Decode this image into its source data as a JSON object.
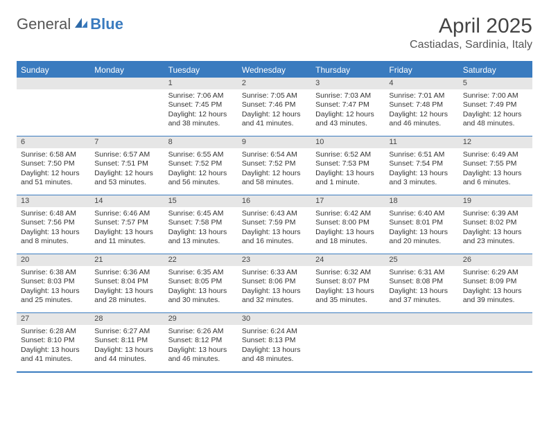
{
  "brand": {
    "part1": "General",
    "part2": "Blue"
  },
  "title": "April 2025",
  "location": "Castiadas, Sardinia, Italy",
  "colors": {
    "accent": "#3a7bbf",
    "daynum_bg": "#e6e6e6",
    "text": "#333333",
    "page_bg": "#ffffff"
  },
  "weekdays": [
    "Sunday",
    "Monday",
    "Tuesday",
    "Wednesday",
    "Thursday",
    "Friday",
    "Saturday"
  ],
  "weeks": [
    [
      {
        "blank": true
      },
      {
        "blank": true
      },
      {
        "day": "1",
        "sunrise": "Sunrise: 7:06 AM",
        "sunset": "Sunset: 7:45 PM",
        "daylight1": "Daylight: 12 hours",
        "daylight2": "and 38 minutes."
      },
      {
        "day": "2",
        "sunrise": "Sunrise: 7:05 AM",
        "sunset": "Sunset: 7:46 PM",
        "daylight1": "Daylight: 12 hours",
        "daylight2": "and 41 minutes."
      },
      {
        "day": "3",
        "sunrise": "Sunrise: 7:03 AM",
        "sunset": "Sunset: 7:47 PM",
        "daylight1": "Daylight: 12 hours",
        "daylight2": "and 43 minutes."
      },
      {
        "day": "4",
        "sunrise": "Sunrise: 7:01 AM",
        "sunset": "Sunset: 7:48 PM",
        "daylight1": "Daylight: 12 hours",
        "daylight2": "and 46 minutes."
      },
      {
        "day": "5",
        "sunrise": "Sunrise: 7:00 AM",
        "sunset": "Sunset: 7:49 PM",
        "daylight1": "Daylight: 12 hours",
        "daylight2": "and 48 minutes."
      }
    ],
    [
      {
        "day": "6",
        "sunrise": "Sunrise: 6:58 AM",
        "sunset": "Sunset: 7:50 PM",
        "daylight1": "Daylight: 12 hours",
        "daylight2": "and 51 minutes."
      },
      {
        "day": "7",
        "sunrise": "Sunrise: 6:57 AM",
        "sunset": "Sunset: 7:51 PM",
        "daylight1": "Daylight: 12 hours",
        "daylight2": "and 53 minutes."
      },
      {
        "day": "8",
        "sunrise": "Sunrise: 6:55 AM",
        "sunset": "Sunset: 7:52 PM",
        "daylight1": "Daylight: 12 hours",
        "daylight2": "and 56 minutes."
      },
      {
        "day": "9",
        "sunrise": "Sunrise: 6:54 AM",
        "sunset": "Sunset: 7:52 PM",
        "daylight1": "Daylight: 12 hours",
        "daylight2": "and 58 minutes."
      },
      {
        "day": "10",
        "sunrise": "Sunrise: 6:52 AM",
        "sunset": "Sunset: 7:53 PM",
        "daylight1": "Daylight: 13 hours",
        "daylight2": "and 1 minute."
      },
      {
        "day": "11",
        "sunrise": "Sunrise: 6:51 AM",
        "sunset": "Sunset: 7:54 PM",
        "daylight1": "Daylight: 13 hours",
        "daylight2": "and 3 minutes."
      },
      {
        "day": "12",
        "sunrise": "Sunrise: 6:49 AM",
        "sunset": "Sunset: 7:55 PM",
        "daylight1": "Daylight: 13 hours",
        "daylight2": "and 6 minutes."
      }
    ],
    [
      {
        "day": "13",
        "sunrise": "Sunrise: 6:48 AM",
        "sunset": "Sunset: 7:56 PM",
        "daylight1": "Daylight: 13 hours",
        "daylight2": "and 8 minutes."
      },
      {
        "day": "14",
        "sunrise": "Sunrise: 6:46 AM",
        "sunset": "Sunset: 7:57 PM",
        "daylight1": "Daylight: 13 hours",
        "daylight2": "and 11 minutes."
      },
      {
        "day": "15",
        "sunrise": "Sunrise: 6:45 AM",
        "sunset": "Sunset: 7:58 PM",
        "daylight1": "Daylight: 13 hours",
        "daylight2": "and 13 minutes."
      },
      {
        "day": "16",
        "sunrise": "Sunrise: 6:43 AM",
        "sunset": "Sunset: 7:59 PM",
        "daylight1": "Daylight: 13 hours",
        "daylight2": "and 16 minutes."
      },
      {
        "day": "17",
        "sunrise": "Sunrise: 6:42 AM",
        "sunset": "Sunset: 8:00 PM",
        "daylight1": "Daylight: 13 hours",
        "daylight2": "and 18 minutes."
      },
      {
        "day": "18",
        "sunrise": "Sunrise: 6:40 AM",
        "sunset": "Sunset: 8:01 PM",
        "daylight1": "Daylight: 13 hours",
        "daylight2": "and 20 minutes."
      },
      {
        "day": "19",
        "sunrise": "Sunrise: 6:39 AM",
        "sunset": "Sunset: 8:02 PM",
        "daylight1": "Daylight: 13 hours",
        "daylight2": "and 23 minutes."
      }
    ],
    [
      {
        "day": "20",
        "sunrise": "Sunrise: 6:38 AM",
        "sunset": "Sunset: 8:03 PM",
        "daylight1": "Daylight: 13 hours",
        "daylight2": "and 25 minutes."
      },
      {
        "day": "21",
        "sunrise": "Sunrise: 6:36 AM",
        "sunset": "Sunset: 8:04 PM",
        "daylight1": "Daylight: 13 hours",
        "daylight2": "and 28 minutes."
      },
      {
        "day": "22",
        "sunrise": "Sunrise: 6:35 AM",
        "sunset": "Sunset: 8:05 PM",
        "daylight1": "Daylight: 13 hours",
        "daylight2": "and 30 minutes."
      },
      {
        "day": "23",
        "sunrise": "Sunrise: 6:33 AM",
        "sunset": "Sunset: 8:06 PM",
        "daylight1": "Daylight: 13 hours",
        "daylight2": "and 32 minutes."
      },
      {
        "day": "24",
        "sunrise": "Sunrise: 6:32 AM",
        "sunset": "Sunset: 8:07 PM",
        "daylight1": "Daylight: 13 hours",
        "daylight2": "and 35 minutes."
      },
      {
        "day": "25",
        "sunrise": "Sunrise: 6:31 AM",
        "sunset": "Sunset: 8:08 PM",
        "daylight1": "Daylight: 13 hours",
        "daylight2": "and 37 minutes."
      },
      {
        "day": "26",
        "sunrise": "Sunrise: 6:29 AM",
        "sunset": "Sunset: 8:09 PM",
        "daylight1": "Daylight: 13 hours",
        "daylight2": "and 39 minutes."
      }
    ],
    [
      {
        "day": "27",
        "sunrise": "Sunrise: 6:28 AM",
        "sunset": "Sunset: 8:10 PM",
        "daylight1": "Daylight: 13 hours",
        "daylight2": "and 41 minutes."
      },
      {
        "day": "28",
        "sunrise": "Sunrise: 6:27 AM",
        "sunset": "Sunset: 8:11 PM",
        "daylight1": "Daylight: 13 hours",
        "daylight2": "and 44 minutes."
      },
      {
        "day": "29",
        "sunrise": "Sunrise: 6:26 AM",
        "sunset": "Sunset: 8:12 PM",
        "daylight1": "Daylight: 13 hours",
        "daylight2": "and 46 minutes."
      },
      {
        "day": "30",
        "sunrise": "Sunrise: 6:24 AM",
        "sunset": "Sunset: 8:13 PM",
        "daylight1": "Daylight: 13 hours",
        "daylight2": "and 48 minutes."
      },
      {
        "blank": true
      },
      {
        "blank": true
      },
      {
        "blank": true
      }
    ]
  ]
}
